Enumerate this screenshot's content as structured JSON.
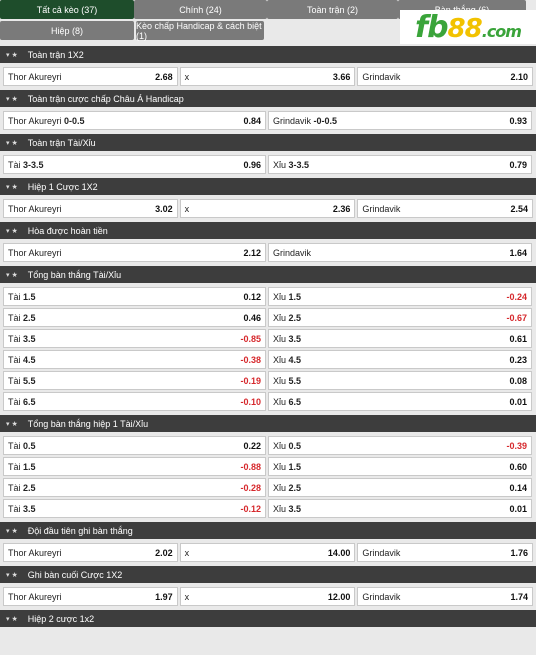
{
  "tabs": [
    {
      "label": "Tất cả kèo (37)",
      "active": true
    },
    {
      "label": "Chính (24)",
      "active": false
    },
    {
      "label": "Toàn trận (2)",
      "active": false
    },
    {
      "label": "Bàn thắng (6)",
      "active": false
    },
    {
      "label": "Hiệp (8)",
      "active": false
    },
    {
      "label": "Kèo chấp Handicap & cách biệt (1)",
      "active": false
    }
  ],
  "logo": {
    "text": "fb",
    "num": "88",
    "suffix": ".com"
  },
  "sections": [
    {
      "title": "Toàn trận 1X2",
      "cols": 3,
      "rows": [
        [
          {
            "label": "Thor Akureyri",
            "odd": "2.68"
          },
          {
            "label": "x",
            "odd": "3.66"
          },
          {
            "label": "Grindavik",
            "odd": "2.10"
          }
        ]
      ]
    },
    {
      "title": "Toàn trận cược chấp Châu Á Handicap",
      "cols": 2,
      "rows": [
        [
          {
            "label": "Thor Akureyri",
            "hcp": "0-0.5",
            "odd": "0.84"
          },
          {
            "label": "Grindavik",
            "hcp": "-0-0.5",
            "odd": "0.93"
          }
        ]
      ]
    },
    {
      "title": "Toàn trận Tài/Xỉu",
      "cols": 2,
      "rows": [
        [
          {
            "label": "Tài",
            "hcp": "3-3.5",
            "odd": "0.96"
          },
          {
            "label": "Xỉu",
            "hcp": "3-3.5",
            "odd": "0.79"
          }
        ]
      ]
    },
    {
      "title": "Hiệp 1 Cược 1X2",
      "cols": 3,
      "rows": [
        [
          {
            "label": "Thor Akureyri",
            "odd": "3.02"
          },
          {
            "label": "x",
            "odd": "2.36"
          },
          {
            "label": "Grindavik",
            "odd": "2.54"
          }
        ]
      ]
    },
    {
      "title": "Hòa được hoàn tiền",
      "cols": 2,
      "rows": [
        [
          {
            "label": "Thor Akureyri",
            "odd": "2.12"
          },
          {
            "label": "Grindavik",
            "odd": "1.64"
          }
        ]
      ]
    },
    {
      "title": "Tổng bàn thắng Tài/Xỉu",
      "cols": 2,
      "rows": [
        [
          {
            "label": "Tài",
            "hcp": "1.5",
            "odd": "0.12"
          },
          {
            "label": "Xỉu",
            "hcp": "1.5",
            "odd": "-0.24"
          }
        ],
        [
          {
            "label": "Tài",
            "hcp": "2.5",
            "odd": "0.46"
          },
          {
            "label": "Xỉu",
            "hcp": "2.5",
            "odd": "-0.67"
          }
        ],
        [
          {
            "label": "Tài",
            "hcp": "3.5",
            "odd": "-0.85"
          },
          {
            "label": "Xỉu",
            "hcp": "3.5",
            "odd": "0.61"
          }
        ],
        [
          {
            "label": "Tài",
            "hcp": "4.5",
            "odd": "-0.38"
          },
          {
            "label": "Xỉu",
            "hcp": "4.5",
            "odd": "0.23"
          }
        ],
        [
          {
            "label": "Tài",
            "hcp": "5.5",
            "odd": "-0.19"
          },
          {
            "label": "Xỉu",
            "hcp": "5.5",
            "odd": "0.08"
          }
        ],
        [
          {
            "label": "Tài",
            "hcp": "6.5",
            "odd": "-0.10"
          },
          {
            "label": "Xỉu",
            "hcp": "6.5",
            "odd": "0.01"
          }
        ]
      ]
    },
    {
      "title": "Tổng bàn thắng hiệp 1 Tài/Xỉu",
      "cols": 2,
      "rows": [
        [
          {
            "label": "Tài",
            "hcp": "0.5",
            "odd": "0.22"
          },
          {
            "label": "Xỉu",
            "hcp": "0.5",
            "odd": "-0.39"
          }
        ],
        [
          {
            "label": "Tài",
            "hcp": "1.5",
            "odd": "-0.88"
          },
          {
            "label": "Xỉu",
            "hcp": "1.5",
            "odd": "0.60"
          }
        ],
        [
          {
            "label": "Tài",
            "hcp": "2.5",
            "odd": "-0.28"
          },
          {
            "label": "Xỉu",
            "hcp": "2.5",
            "odd": "0.14"
          }
        ],
        [
          {
            "label": "Tài",
            "hcp": "3.5",
            "odd": "-0.12"
          },
          {
            "label": "Xỉu",
            "hcp": "3.5",
            "odd": "0.01"
          }
        ]
      ]
    },
    {
      "title": "Đội đầu tiên ghi bàn thắng",
      "cols": 3,
      "rows": [
        [
          {
            "label": "Thor Akureyri",
            "odd": "2.02"
          },
          {
            "label": "x",
            "odd": "14.00"
          },
          {
            "label": "Grindavik",
            "odd": "1.76"
          }
        ]
      ]
    },
    {
      "title": "Ghi bàn cuối Cược 1X2",
      "cols": 3,
      "rows": [
        [
          {
            "label": "Thor Akureyri",
            "odd": "1.97"
          },
          {
            "label": "x",
            "odd": "12.00"
          },
          {
            "label": "Grindavik",
            "odd": "1.74"
          }
        ]
      ]
    },
    {
      "title": "Hiệp 2 cược 1x2",
      "cols": 3,
      "rows": []
    }
  ],
  "colors": {
    "active_tab": "#1e4d2b",
    "tab": "#7a7a7a",
    "header": "#3d3d3d",
    "negative": "#d6282c",
    "logo_green": "#3aa43a",
    "logo_yellow": "#f2c200"
  }
}
